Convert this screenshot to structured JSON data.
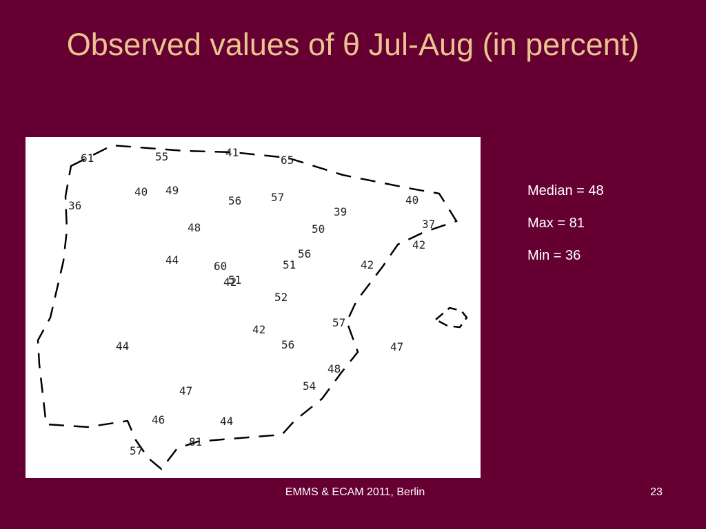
{
  "slide": {
    "title": "Observed values of θ Jul-Aug (in percent)",
    "footer": "EMMS & ECAM 2011, Berlin",
    "page_number": "23"
  },
  "colors": {
    "background": "#660033",
    "title": "#e9c48e",
    "panel": "#ffffff",
    "text": "#ffffff"
  },
  "stats": {
    "median": "Median = 48",
    "max": "Max = 81",
    "min": "Min = 36"
  },
  "map": {
    "values": [
      "61",
      "55",
      "41",
      "65",
      "40",
      "49",
      "57",
      "56",
      "40",
      "36",
      "39",
      "48",
      "50",
      "37",
      "42",
      "56",
      "44",
      "60",
      "51",
      "42",
      "51",
      "42",
      "52",
      "57",
      "42",
      "56",
      "44",
      "47",
      "48",
      "54",
      "47",
      "46",
      "44",
      "81",
      "57"
    ]
  }
}
